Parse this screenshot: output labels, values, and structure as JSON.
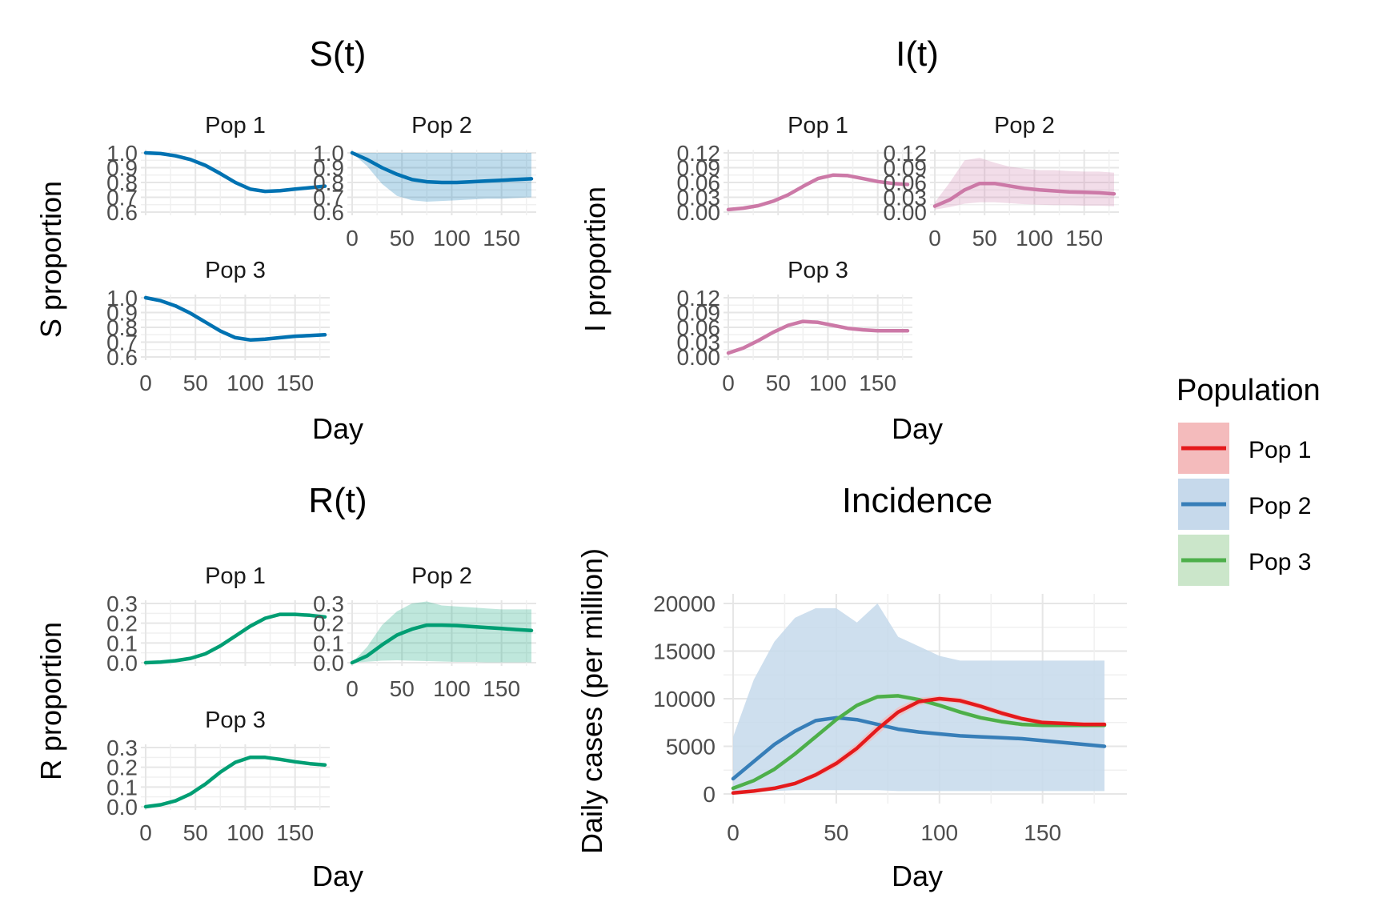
{
  "chart_data": [
    {
      "type": "line",
      "title": "S(t)",
      "xlabel": "Day",
      "ylabel": "S proportion",
      "xlim": [
        0,
        180
      ],
      "ylim": [
        0.6,
        1.0
      ],
      "x_ticks": [
        "0",
        "50",
        "100",
        "150"
      ],
      "y_ticks": [
        "0.6",
        "0.7",
        "0.8",
        "0.9",
        "1.0"
      ],
      "y_tick_values": [
        0.6,
        0.7,
        0.8,
        0.9,
        1.0
      ],
      "color": "#0072B2",
      "grid": true,
      "facets": [
        {
          "strip": "Pop 1",
          "x": [
            0,
            15,
            30,
            45,
            60,
            75,
            90,
            105,
            120,
            135,
            150,
            165,
            180
          ],
          "y": [
            1.0,
            0.995,
            0.98,
            0.955,
            0.915,
            0.86,
            0.8,
            0.755,
            0.74,
            0.745,
            0.755,
            0.765,
            0.775
          ],
          "band_lower": [
            1.0,
            0.994,
            0.975,
            0.945,
            0.9,
            0.845,
            0.79,
            0.75,
            0.735,
            0.74,
            0.75,
            0.76,
            0.77
          ],
          "band_upper": [
            1.0,
            0.997,
            0.985,
            0.965,
            0.93,
            0.875,
            0.815,
            0.765,
            0.75,
            0.752,
            0.762,
            0.772,
            0.782
          ]
        },
        {
          "strip": "Pop 2",
          "x": [
            0,
            15,
            30,
            45,
            60,
            75,
            90,
            105,
            120,
            135,
            150,
            165,
            180
          ],
          "y": [
            1.0,
            0.955,
            0.9,
            0.855,
            0.82,
            0.805,
            0.8,
            0.8,
            0.805,
            0.81,
            0.815,
            0.82,
            0.825
          ],
          "band_lower": [
            1.0,
            0.91,
            0.79,
            0.71,
            0.68,
            0.67,
            0.675,
            0.68,
            0.685,
            0.69,
            0.69,
            0.695,
            0.7
          ],
          "band_upper": [
            1.0,
            1.0,
            1.0,
            1.0,
            1.0,
            1.0,
            1.0,
            1.0,
            1.0,
            1.0,
            1.0,
            1.0,
            1.0
          ]
        },
        {
          "strip": "Pop 3",
          "x": [
            0,
            15,
            30,
            45,
            60,
            75,
            90,
            105,
            120,
            135,
            150,
            165,
            180
          ],
          "y": [
            1.0,
            0.98,
            0.945,
            0.895,
            0.835,
            0.775,
            0.73,
            0.715,
            0.72,
            0.73,
            0.74,
            0.745,
            0.75
          ],
          "band_lower": [
            1.0,
            0.978,
            0.94,
            0.888,
            0.828,
            0.768,
            0.724,
            0.71,
            0.715,
            0.725,
            0.735,
            0.74,
            0.745
          ],
          "band_upper": [
            1.0,
            0.982,
            0.95,
            0.902,
            0.842,
            0.782,
            0.736,
            0.72,
            0.725,
            0.735,
            0.745,
            0.75,
            0.755
          ]
        }
      ]
    },
    {
      "type": "line",
      "title": "I(t)",
      "xlabel": "Day",
      "ylabel": "I proportion",
      "xlim": [
        0,
        180
      ],
      "ylim": [
        0,
        0.12
      ],
      "x_ticks": [
        "0",
        "50",
        "100",
        "150"
      ],
      "y_ticks": [
        "0.00",
        "0.03",
        "0.06",
        "0.09",
        "0.12"
      ],
      "y_tick_values": [
        0,
        0.03,
        0.06,
        0.09,
        0.12
      ],
      "color": "#CC79A7",
      "grid": true,
      "facets": [
        {
          "strip": "Pop 1",
          "x": [
            0,
            15,
            30,
            45,
            60,
            75,
            90,
            105,
            120,
            135,
            150,
            165,
            180
          ],
          "y": [
            0.005,
            0.008,
            0.013,
            0.022,
            0.035,
            0.052,
            0.068,
            0.075,
            0.074,
            0.068,
            0.062,
            0.058,
            0.056
          ],
          "band_lower": [
            0.004,
            0.007,
            0.012,
            0.02,
            0.032,
            0.049,
            0.065,
            0.072,
            0.071,
            0.066,
            0.06,
            0.056,
            0.054
          ],
          "band_upper": [
            0.006,
            0.009,
            0.014,
            0.024,
            0.038,
            0.055,
            0.071,
            0.078,
            0.077,
            0.07,
            0.064,
            0.06,
            0.058
          ]
        },
        {
          "strip": "Pop 2",
          "x": [
            0,
            15,
            30,
            45,
            60,
            75,
            90,
            105,
            120,
            135,
            150,
            165,
            180
          ],
          "y": [
            0.012,
            0.025,
            0.045,
            0.058,
            0.058,
            0.053,
            0.048,
            0.045,
            0.043,
            0.041,
            0.04,
            0.039,
            0.037
          ],
          "band_lower": [
            0.005,
            0.01,
            0.017,
            0.02,
            0.02,
            0.018,
            0.016,
            0.015,
            0.014,
            0.014,
            0.013,
            0.013,
            0.012
          ],
          "band_upper": [
            0.02,
            0.06,
            0.105,
            0.11,
            0.1,
            0.092,
            0.088,
            0.085,
            0.085,
            0.083,
            0.082,
            0.082,
            0.08
          ]
        },
        {
          "strip": "Pop 3",
          "x": [
            0,
            15,
            30,
            45,
            60,
            75,
            90,
            105,
            120,
            135,
            150,
            165,
            180
          ],
          "y": [
            0.008,
            0.018,
            0.033,
            0.05,
            0.064,
            0.072,
            0.07,
            0.064,
            0.058,
            0.055,
            0.053,
            0.053,
            0.053
          ],
          "band_lower": [
            0.007,
            0.017,
            0.031,
            0.048,
            0.062,
            0.07,
            0.068,
            0.062,
            0.056,
            0.053,
            0.051,
            0.051,
            0.051
          ],
          "band_upper": [
            0.009,
            0.019,
            0.035,
            0.052,
            0.066,
            0.074,
            0.072,
            0.066,
            0.06,
            0.057,
            0.055,
            0.055,
            0.055
          ]
        }
      ]
    },
    {
      "type": "line",
      "title": "R(t)",
      "xlabel": "Day",
      "ylabel": "R proportion",
      "xlim": [
        0,
        180
      ],
      "ylim": [
        0,
        0.3
      ],
      "x_ticks": [
        "0",
        "50",
        "100",
        "150"
      ],
      "y_ticks": [
        "0.0",
        "0.1",
        "0.2",
        "0.3"
      ],
      "y_tick_values": [
        0,
        0.1,
        0.2,
        0.3
      ],
      "color": "#009E73",
      "grid": true,
      "facets": [
        {
          "strip": "Pop 1",
          "x": [
            0,
            15,
            30,
            45,
            60,
            75,
            90,
            105,
            120,
            135,
            150,
            165,
            180
          ],
          "y": [
            0.0,
            0.003,
            0.01,
            0.022,
            0.045,
            0.085,
            0.135,
            0.185,
            0.225,
            0.245,
            0.245,
            0.24,
            0.232
          ],
          "band_lower": [
            0.0,
            0.002,
            0.008,
            0.019,
            0.041,
            0.08,
            0.13,
            0.18,
            0.22,
            0.24,
            0.24,
            0.235,
            0.227
          ],
          "band_upper": [
            0.0,
            0.004,
            0.012,
            0.025,
            0.049,
            0.09,
            0.14,
            0.19,
            0.23,
            0.25,
            0.25,
            0.245,
            0.237
          ]
        },
        {
          "strip": "Pop 2",
          "x": [
            0,
            15,
            30,
            45,
            60,
            75,
            90,
            105,
            120,
            135,
            150,
            165,
            180
          ],
          "y": [
            0.0,
            0.035,
            0.09,
            0.14,
            0.17,
            0.19,
            0.19,
            0.188,
            0.183,
            0.178,
            0.173,
            0.168,
            0.163
          ],
          "band_lower": [
            0.0,
            0.005,
            0.01,
            0.012,
            0.01,
            0.008,
            0.006,
            0.004,
            0.004,
            0.002,
            0.002,
            0.002,
            0.002
          ],
          "band_upper": [
            0.0,
            0.08,
            0.19,
            0.26,
            0.3,
            0.31,
            0.29,
            0.285,
            0.28,
            0.275,
            0.27,
            0.27,
            0.27
          ]
        },
        {
          "strip": "Pop 3",
          "x": [
            0,
            15,
            30,
            45,
            60,
            75,
            90,
            105,
            120,
            135,
            150,
            165,
            180
          ],
          "y": [
            0.0,
            0.01,
            0.03,
            0.065,
            0.115,
            0.175,
            0.225,
            0.25,
            0.25,
            0.24,
            0.228,
            0.218,
            0.212
          ],
          "band_lower": [
            0.0,
            0.009,
            0.028,
            0.062,
            0.111,
            0.171,
            0.221,
            0.246,
            0.246,
            0.236,
            0.224,
            0.214,
            0.208
          ],
          "band_upper": [
            0.0,
            0.011,
            0.032,
            0.068,
            0.119,
            0.179,
            0.229,
            0.254,
            0.254,
            0.244,
            0.232,
            0.222,
            0.216
          ]
        }
      ]
    },
    {
      "type": "line",
      "title": "Incidence",
      "xlabel": "Day",
      "ylabel": "Daily cases (per million)",
      "xlim": [
        0,
        180
      ],
      "ylim": [
        0,
        20000
      ],
      "x_ticks": [
        "0",
        "50",
        "100",
        "150"
      ],
      "x_tick_values": [
        0,
        50,
        100,
        150
      ],
      "y_ticks": [
        "0",
        "5000",
        "10000",
        "15000",
        "20000"
      ],
      "y_tick_values": [
        0,
        5000,
        10000,
        15000,
        20000
      ],
      "grid": true,
      "legend": {
        "title": "Population",
        "position": "right"
      },
      "series": [
        {
          "name": "Pop 1",
          "color": "#E41A1C",
          "band_color": "#F4BBBC",
          "x": [
            0,
            10,
            20,
            30,
            40,
            50,
            60,
            70,
            80,
            90,
            100,
            110,
            120,
            130,
            140,
            150,
            160,
            170,
            180
          ],
          "y": [
            100,
            300,
            600,
            1100,
            2000,
            3200,
            4800,
            6800,
            8600,
            9700,
            10000,
            9800,
            9200,
            8500,
            7900,
            7500,
            7400,
            7300,
            7300
          ],
          "band_lower": [
            80,
            240,
            500,
            950,
            1700,
            2800,
            4300,
            6200,
            8100,
            9300,
            9700,
            9500,
            8900,
            8200,
            7650,
            7250,
            7150,
            7050,
            7050
          ],
          "band_upper": [
            120,
            360,
            700,
            1250,
            2300,
            3600,
            5300,
            7400,
            9100,
            10100,
            10300,
            10100,
            9500,
            8800,
            8150,
            7750,
            7650,
            7550,
            7550
          ]
        },
        {
          "name": "Pop 2",
          "color": "#377EB8",
          "band_color": "#C6D9EB",
          "x": [
            0,
            10,
            20,
            30,
            40,
            50,
            60,
            70,
            80,
            90,
            100,
            110,
            120,
            130,
            140,
            150,
            160,
            170,
            180
          ],
          "y": [
            1600,
            3400,
            5200,
            6600,
            7700,
            8000,
            7800,
            7300,
            6800,
            6500,
            6300,
            6100,
            6000,
            5900,
            5800,
            5600,
            5400,
            5200,
            5000
          ],
          "band_lower": [
            100,
            200,
            300,
            400,
            400,
            400,
            400,
            400,
            300,
            300,
            300,
            300,
            300,
            300,
            300,
            300,
            300,
            300,
            300
          ],
          "band_upper": [
            6000,
            12000,
            16000,
            18500,
            19500,
            19500,
            18000,
            20000,
            16500,
            15500,
            14500,
            14000,
            14000,
            14000,
            14000,
            14000,
            14000,
            14000,
            14000
          ]
        },
        {
          "name": "Pop 3",
          "color": "#4DAF4A",
          "band_color": "#CBE6CA",
          "x": [
            0,
            10,
            20,
            30,
            40,
            50,
            60,
            70,
            80,
            90,
            100,
            110,
            120,
            130,
            140,
            150,
            160,
            170,
            180
          ],
          "y": [
            600,
            1400,
            2600,
            4200,
            6000,
            7800,
            9300,
            10200,
            10300,
            9900,
            9300,
            8600,
            8000,
            7600,
            7300,
            7200,
            7200,
            7200,
            7200
          ],
          "band_lower": [
            500,
            1250,
            2400,
            4000,
            5750,
            7550,
            9050,
            9950,
            10050,
            9650,
            9050,
            8350,
            7750,
            7350,
            7050,
            6950,
            6950,
            6950,
            6950
          ],
          "band_upper": [
            700,
            1550,
            2800,
            4400,
            6250,
            8050,
            9550,
            10450,
            10550,
            10150,
            9550,
            8850,
            8250,
            7850,
            7550,
            7450,
            7450,
            7450,
            7450
          ]
        }
      ]
    }
  ]
}
